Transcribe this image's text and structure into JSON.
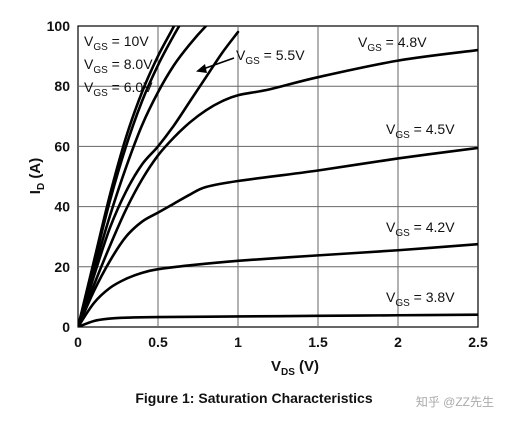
{
  "chart_data": {
    "type": "line",
    "xlabel": {
      "main": "V",
      "sub": "DS",
      "unit": " (V)"
    },
    "ylabel": {
      "main": "I",
      "sub": "D",
      "unit": " (A)"
    },
    "xlim": [
      0,
      2.5
    ],
    "ylim": [
      0,
      100
    ],
    "xticks": [
      {
        "value": 0,
        "label": "0"
      },
      {
        "value": 0.5,
        "label": "0.5"
      },
      {
        "value": 1,
        "label": "1"
      },
      {
        "value": 1.5,
        "label": "1.5"
      },
      {
        "value": 2,
        "label": "2"
      },
      {
        "value": 2.5,
        "label": "2.5"
      }
    ],
    "yticks": [
      {
        "value": 0,
        "label": "0"
      },
      {
        "value": 20,
        "label": "20"
      },
      {
        "value": 40,
        "label": "40"
      },
      {
        "value": 60,
        "label": "60"
      },
      {
        "value": 80,
        "label": "80"
      },
      {
        "value": 100,
        "label": "100"
      }
    ],
    "grid": true,
    "legend": "inline labels",
    "line_color": "#000000",
    "series": [
      {
        "name": "VGS = 10V",
        "label_main": "V",
        "label_sub": "GS",
        "label_text": " = 10V",
        "points": [
          [
            0,
            0
          ],
          [
            0.1,
            22
          ],
          [
            0.2,
            44
          ],
          [
            0.3,
            63
          ],
          [
            0.4,
            78
          ],
          [
            0.5,
            90
          ],
          [
            0.6,
            100
          ],
          [
            0.67,
            108
          ]
        ]
      },
      {
        "name": "VGS = 8.0V",
        "label_main": "V",
        "label_sub": "GS",
        "label_text": " = 8.0V",
        "points": [
          [
            0,
            0
          ],
          [
            0.1,
            21
          ],
          [
            0.2,
            42
          ],
          [
            0.3,
            60
          ],
          [
            0.4,
            75
          ],
          [
            0.5,
            87
          ],
          [
            0.6,
            97
          ],
          [
            0.7,
            106
          ]
        ]
      },
      {
        "name": "VGS = 6.0V",
        "label_main": "V",
        "label_sub": "GS",
        "label_text": " = 6.0V",
        "points": [
          [
            0,
            0
          ],
          [
            0.1,
            19
          ],
          [
            0.2,
            37
          ],
          [
            0.3,
            53
          ],
          [
            0.4,
            67
          ],
          [
            0.5,
            78
          ],
          [
            0.6,
            87
          ],
          [
            0.7,
            94
          ],
          [
            0.8,
            100
          ],
          [
            0.9,
            105
          ]
        ]
      },
      {
        "name": "VGS = 5.5V",
        "label_main": "V",
        "label_sub": "GS",
        "label_text": " = 5.5V",
        "points": [
          [
            0,
            0
          ],
          [
            0.1,
            17
          ],
          [
            0.2,
            33
          ],
          [
            0.3,
            45
          ],
          [
            0.4,
            54
          ],
          [
            0.5,
            60
          ],
          [
            0.6,
            67
          ],
          [
            0.7,
            75
          ],
          [
            0.8,
            83
          ],
          [
            0.9,
            91
          ],
          [
            1.0,
            98
          ]
        ]
      },
      {
        "name": "VGS = 4.8V",
        "label_main": "V",
        "label_sub": "GS",
        "label_text": " = 4.8V",
        "points": [
          [
            0,
            0
          ],
          [
            0.1,
            14
          ],
          [
            0.2,
            27
          ],
          [
            0.3,
            39
          ],
          [
            0.4,
            49
          ],
          [
            0.5,
            57
          ],
          [
            0.6,
            63
          ],
          [
            0.7,
            68
          ],
          [
            0.8,
            72
          ],
          [
            0.9,
            75
          ],
          [
            1.0,
            77
          ],
          [
            1.2,
            79
          ],
          [
            1.5,
            83
          ],
          [
            2.0,
            88.5
          ],
          [
            2.5,
            92
          ]
        ]
      },
      {
        "name": "VGS = 4.5V",
        "label_main": "V",
        "label_sub": "GS",
        "label_text": " = 4.5V",
        "points": [
          [
            0,
            0
          ],
          [
            0.1,
            12
          ],
          [
            0.2,
            22
          ],
          [
            0.3,
            30
          ],
          [
            0.4,
            35
          ],
          [
            0.5,
            38
          ],
          [
            0.6,
            41
          ],
          [
            0.7,
            44
          ],
          [
            0.8,
            46.5
          ],
          [
            1.0,
            48.5
          ],
          [
            1.5,
            52
          ],
          [
            2.0,
            56
          ],
          [
            2.5,
            59.5
          ]
        ]
      },
      {
        "name": "VGS = 4.2V",
        "label_main": "V",
        "label_sub": "GS",
        "label_text": " = 4.2V",
        "points": [
          [
            0,
            0
          ],
          [
            0.1,
            8
          ],
          [
            0.2,
            13
          ],
          [
            0.3,
            16
          ],
          [
            0.4,
            18
          ],
          [
            0.5,
            19.2
          ],
          [
            0.7,
            20.5
          ],
          [
            1.0,
            22
          ],
          [
            1.5,
            23.8
          ],
          [
            2.0,
            25.5
          ],
          [
            2.5,
            27.5
          ]
        ]
      },
      {
        "name": "VGS = 3.8V",
        "label_main": "V",
        "label_sub": "GS",
        "label_text": " = 3.8V",
        "points": [
          [
            0,
            0
          ],
          [
            0.1,
            2
          ],
          [
            0.2,
            2.8
          ],
          [
            0.3,
            3.1
          ],
          [
            0.5,
            3.3
          ],
          [
            1.0,
            3.5
          ],
          [
            1.5,
            3.7
          ],
          [
            2.0,
            3.9
          ],
          [
            2.5,
            4.1
          ]
        ]
      }
    ]
  },
  "caption": "Figure 1:  Saturation Characteristics",
  "watermark": "知乎 @ZZ先生"
}
